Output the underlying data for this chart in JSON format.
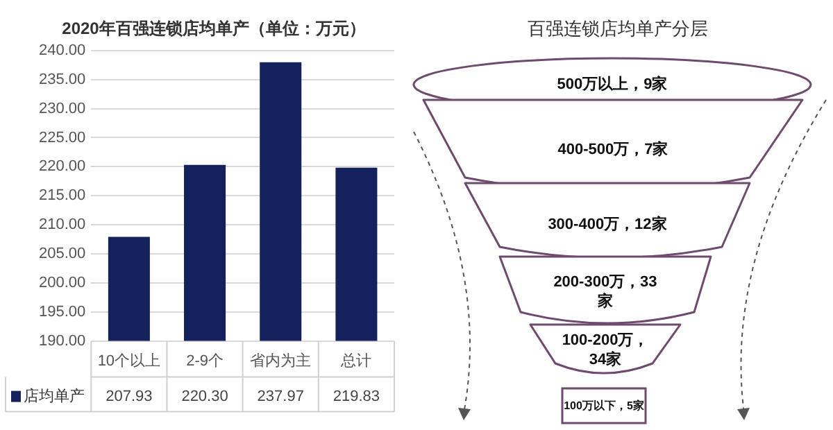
{
  "chart_data": [
    {
      "type": "bar",
      "title": "2020年百强连锁店均单产（单位：万元）",
      "categories": [
        "10个以上",
        "2-9个",
        "省内为主",
        "总计"
      ],
      "series": [
        {
          "name": "店均单产",
          "color": "#15215a",
          "values": [
            207.93,
            220.3,
            237.97,
            219.83
          ]
        }
      ],
      "value_labels": [
        "207.93",
        "220.30",
        "237.97",
        "219.83"
      ],
      "ylim": [
        190,
        240
      ],
      "yticks": [
        {
          "value": 190,
          "label": "190.00"
        },
        {
          "value": 195,
          "label": "195.00"
        },
        {
          "value": 200,
          "label": "200.00"
        },
        {
          "value": 205,
          "label": "205.00"
        },
        {
          "value": 210,
          "label": "210.00"
        },
        {
          "value": 215,
          "label": "215.00"
        },
        {
          "value": 220,
          "label": "220.00"
        },
        {
          "value": 225,
          "label": "225.00"
        },
        {
          "value": 230,
          "label": "230.00"
        },
        {
          "value": 235,
          "label": "235.00"
        },
        {
          "value": 240,
          "label": "240.00"
        }
      ],
      "grid": "y",
      "legend": "bottom left"
    },
    {
      "type": "other",
      "title": "百强连锁店均单产分层",
      "color": "#6e4a6e",
      "categories": [
        "500万以上，9家",
        "400-500万，7家",
        "300-400万，12家",
        "200-300万，33家",
        "100-200万，34家",
        "100万以下，5家"
      ]
    }
  ]
}
